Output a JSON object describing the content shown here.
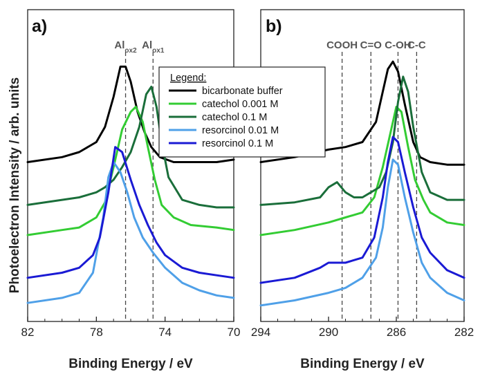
{
  "ylabel": "Photoelectron Intensity / arb. units",
  "chart_data": [
    {
      "type": "line",
      "panel": "a)",
      "xlabel": "Binding Energy / eV",
      "xlim": [
        82,
        70
      ],
      "x_reversed": true,
      "xticks": [
        82,
        78,
        74,
        70
      ],
      "xtick_labels": [
        "82",
        "78",
        "74",
        "70"
      ],
      "y_units": "arbitrary (stacked offsets)",
      "annotations": [
        {
          "main": "Al",
          "sub": "ox2",
          "x": 76.3
        },
        {
          "main": "Al",
          "sub": "ox1",
          "x": 74.7
        }
      ],
      "series": [
        {
          "name": "bicarbonate buffer",
          "color": "#000000",
          "x": [
            82,
            80,
            79,
            78,
            77.5,
            77,
            76.6,
            76.3,
            76.0,
            75.6,
            75.2,
            74.8,
            74.3,
            73.5,
            72.5,
            71,
            70
          ],
          "y": [
            0.62,
            0.64,
            0.66,
            0.7,
            0.76,
            0.88,
            1.0,
            1.0,
            0.94,
            0.82,
            0.74,
            0.68,
            0.64,
            0.62,
            0.62,
            0.62,
            0.63
          ]
        },
        {
          "name": "catechol 0.001 M",
          "color": "#33cc33",
          "x": [
            82,
            80,
            79,
            78,
            77.5,
            77,
            76.5,
            76.0,
            75.7,
            75.3,
            75.0,
            74.6,
            74.2,
            73.5,
            72.5,
            71,
            70
          ],
          "y": [
            0.33,
            0.35,
            0.36,
            0.4,
            0.46,
            0.6,
            0.75,
            0.82,
            0.84,
            0.78,
            0.68,
            0.55,
            0.45,
            0.4,
            0.37,
            0.36,
            0.35
          ]
        },
        {
          "name": "catechol 0.1 M",
          "color": "#1a6e3a",
          "x": [
            82,
            80,
            79,
            78,
            77.5,
            77,
            76.5,
            76.0,
            75.5,
            75.1,
            74.8,
            74.5,
            74.2,
            73.8,
            73,
            72,
            71,
            70
          ],
          "y": [
            0.45,
            0.47,
            0.48,
            0.5,
            0.52,
            0.55,
            0.6,
            0.66,
            0.76,
            0.89,
            0.92,
            0.84,
            0.7,
            0.56,
            0.47,
            0.45,
            0.44,
            0.44
          ]
        },
        {
          "name": "resorcinol 0.01 M",
          "color": "#4fa0e8",
          "x": [
            82,
            80,
            79,
            78.2,
            77.6,
            77.3,
            77.0,
            76.6,
            76.2,
            75.8,
            75.3,
            74.7,
            74.0,
            73.0,
            72,
            71,
            70
          ],
          "y": [
            0.06,
            0.08,
            0.1,
            0.18,
            0.4,
            0.56,
            0.62,
            0.58,
            0.5,
            0.4,
            0.32,
            0.26,
            0.2,
            0.14,
            0.11,
            0.09,
            0.08
          ]
        },
        {
          "name": "resorcinol 0.1 M",
          "color": "#1a1ad4",
          "x": [
            82,
            80,
            79,
            78.2,
            77.8,
            77.3,
            76.9,
            76.5,
            76.0,
            75.5,
            75.0,
            74.5,
            74.0,
            73,
            72,
            71,
            70
          ],
          "y": [
            0.16,
            0.18,
            0.2,
            0.25,
            0.32,
            0.5,
            0.68,
            0.66,
            0.55,
            0.45,
            0.37,
            0.3,
            0.25,
            0.2,
            0.18,
            0.17,
            0.16
          ]
        }
      ],
      "ylim": [
        0,
        1.1
      ]
    },
    {
      "type": "line",
      "panel": "b)",
      "xlabel": "Binding Energy / eV",
      "xlim": [
        294,
        282
      ],
      "x_reversed": true,
      "xticks": [
        294,
        290,
        286,
        282
      ],
      "xtick_labels": [
        "294",
        "290",
        "286",
        "282"
      ],
      "y_units": "arbitrary (stacked offsets)",
      "annotations": [
        {
          "main": "COOH",
          "x": 289.2
        },
        {
          "main": "C=O",
          "x": 287.5
        },
        {
          "main": "C-OH",
          "x": 285.9
        },
        {
          "main": "C-C",
          "x": 284.8
        }
      ],
      "series": [
        {
          "name": "bicarbonate buffer",
          "color": "#000000",
          "x": [
            294,
            292,
            290,
            289,
            288,
            287.2,
            286.8,
            286.5,
            286.2,
            285.9,
            285.5,
            285.0,
            284.6,
            284.0,
            283,
            282
          ],
          "y": [
            0.62,
            0.64,
            0.67,
            0.68,
            0.7,
            0.78,
            0.9,
            0.99,
            1.02,
            0.98,
            0.85,
            0.7,
            0.64,
            0.62,
            0.61,
            0.61
          ]
        },
        {
          "name": "catechol 0.001 M",
          "color": "#33cc33",
          "x": [
            294,
            292,
            290,
            289,
            288,
            287.3,
            286.8,
            286.4,
            286.0,
            285.7,
            285.3,
            284.9,
            284.4,
            284.0,
            283,
            282
          ],
          "y": [
            0.33,
            0.35,
            0.38,
            0.4,
            0.42,
            0.48,
            0.6,
            0.72,
            0.84,
            0.82,
            0.68,
            0.55,
            0.47,
            0.42,
            0.38,
            0.37
          ]
        },
        {
          "name": "catechol 0.1 M",
          "color": "#1a6e3a",
          "x": [
            294,
            292,
            290.5,
            290.0,
            289.5,
            289,
            288.5,
            288,
            287.5,
            287.0,
            286.6,
            286.2,
            285.9,
            285.6,
            285.3,
            285.0,
            284.5,
            284.0,
            283,
            282
          ],
          "y": [
            0.45,
            0.46,
            0.48,
            0.52,
            0.54,
            0.5,
            0.48,
            0.48,
            0.5,
            0.52,
            0.58,
            0.7,
            0.86,
            0.96,
            0.9,
            0.76,
            0.58,
            0.5,
            0.47,
            0.47
          ]
        },
        {
          "name": "resorcinol 0.01 M",
          "color": "#4fa0e8",
          "x": [
            294,
            292,
            290,
            289,
            288,
            287.2,
            286.8,
            286.5,
            286.2,
            285.9,
            285.5,
            285.0,
            284.5,
            284.0,
            283,
            282
          ],
          "y": [
            0.05,
            0.07,
            0.1,
            0.12,
            0.16,
            0.24,
            0.36,
            0.52,
            0.63,
            0.61,
            0.48,
            0.34,
            0.22,
            0.16,
            0.1,
            0.07
          ]
        },
        {
          "name": "resorcinol 0.1 M",
          "color": "#1a1ad4",
          "x": [
            294,
            292,
            290.5,
            290,
            289,
            288,
            287.3,
            286.8,
            286.5,
            286.2,
            285.9,
            285.5,
            285.0,
            284.5,
            284.0,
            283,
            282
          ],
          "y": [
            0.14,
            0.16,
            0.2,
            0.22,
            0.22,
            0.24,
            0.32,
            0.48,
            0.62,
            0.72,
            0.7,
            0.58,
            0.44,
            0.32,
            0.26,
            0.19,
            0.16
          ]
        }
      ],
      "ylim": [
        0,
        1.1
      ]
    }
  ],
  "legend": {
    "title": "Legend:",
    "placement": "inside panel a, top-right",
    "entries": [
      {
        "label": "bicarbonate buffer",
        "color": "#000000"
      },
      {
        "label": "catechol 0.001 M",
        "color": "#33cc33"
      },
      {
        "label": "catechol 0.1 M",
        "color": "#1a6e3a"
      },
      {
        "label": "resorcinol 0.01 M",
        "color": "#4fa0e8"
      },
      {
        "label": "resorcinol 0.1 M",
        "color": "#1a1ad4"
      }
    ]
  }
}
